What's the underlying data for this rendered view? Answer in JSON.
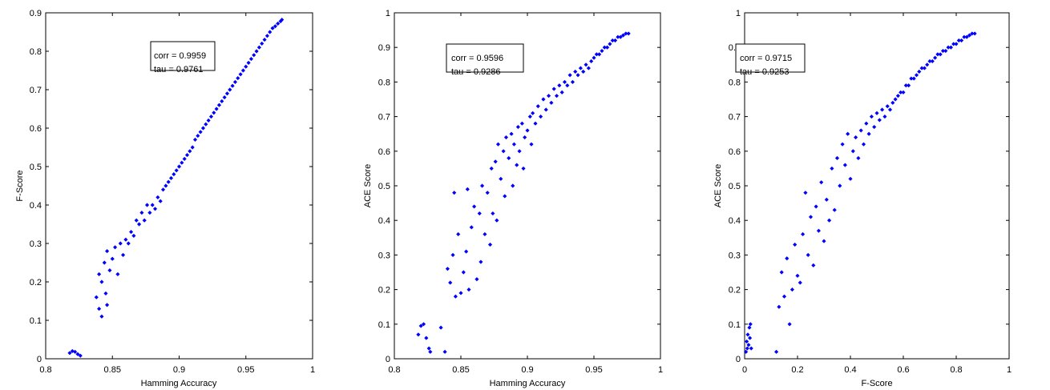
{
  "chart_data": [
    {
      "type": "scatter",
      "xlabel": "Hamming Accuracy",
      "ylabel": "F-Score",
      "xlim": [
        0.8,
        1
      ],
      "ylim": [
        0,
        0.9
      ],
      "xticks": [
        "0.8",
        "0.85",
        "0.9",
        "0.95",
        "1"
      ],
      "yticks": [
        "0",
        "0.1",
        "0.2",
        "0.3",
        "0.4",
        "0.5",
        "0.6",
        "0.7",
        "0.8",
        "0.9"
      ],
      "annotation": {
        "corr": "corr = 0.9959",
        "tau": "tau = 0.9761"
      },
      "marker_color": "#0000ff",
      "series": [
        {
          "points": [
            [
              0.818,
              0.015
            ],
            [
              0.82,
              0.02
            ],
            [
              0.822,
              0.018
            ],
            [
              0.824,
              0.012
            ],
            [
              0.826,
              0.008
            ],
            [
              0.838,
              0.16
            ],
            [
              0.84,
              0.13
            ],
            [
              0.84,
              0.22
            ],
            [
              0.842,
              0.11
            ],
            [
              0.842,
              0.2
            ],
            [
              0.844,
              0.25
            ],
            [
              0.845,
              0.17
            ],
            [
              0.846,
              0.14
            ],
            [
              0.846,
              0.28
            ],
            [
              0.848,
              0.23
            ],
            [
              0.85,
              0.26
            ],
            [
              0.852,
              0.29
            ],
            [
              0.854,
              0.22
            ],
            [
              0.856,
              0.3
            ],
            [
              0.858,
              0.27
            ],
            [
              0.86,
              0.31
            ],
            [
              0.862,
              0.3
            ],
            [
              0.864,
              0.33
            ],
            [
              0.866,
              0.32
            ],
            [
              0.868,
              0.36
            ],
            [
              0.87,
              0.35
            ],
            [
              0.872,
              0.38
            ],
            [
              0.874,
              0.36
            ],
            [
              0.876,
              0.4
            ],
            [
              0.878,
              0.38
            ],
            [
              0.88,
              0.4
            ],
            [
              0.882,
              0.39
            ],
            [
              0.884,
              0.42
            ],
            [
              0.886,
              0.41
            ],
            [
              0.888,
              0.44
            ],
            [
              0.89,
              0.45
            ],
            [
              0.892,
              0.46
            ],
            [
              0.894,
              0.47
            ],
            [
              0.896,
              0.48
            ],
            [
              0.898,
              0.49
            ],
            [
              0.9,
              0.5
            ],
            [
              0.902,
              0.51
            ],
            [
              0.904,
              0.52
            ],
            [
              0.906,
              0.53
            ],
            [
              0.908,
              0.54
            ],
            [
              0.91,
              0.55
            ],
            [
              0.912,
              0.57
            ],
            [
              0.914,
              0.58
            ],
            [
              0.916,
              0.59
            ],
            [
              0.918,
              0.6
            ],
            [
              0.92,
              0.61
            ],
            [
              0.922,
              0.62
            ],
            [
              0.924,
              0.63
            ],
            [
              0.926,
              0.64
            ],
            [
              0.928,
              0.65
            ],
            [
              0.93,
              0.66
            ],
            [
              0.932,
              0.67
            ],
            [
              0.934,
              0.68
            ],
            [
              0.936,
              0.69
            ],
            [
              0.938,
              0.7
            ],
            [
              0.94,
              0.71
            ],
            [
              0.942,
              0.72
            ],
            [
              0.944,
              0.73
            ],
            [
              0.946,
              0.74
            ],
            [
              0.948,
              0.75
            ],
            [
              0.95,
              0.76
            ],
            [
              0.952,
              0.77
            ],
            [
              0.954,
              0.78
            ],
            [
              0.956,
              0.79
            ],
            [
              0.958,
              0.8
            ],
            [
              0.96,
              0.81
            ],
            [
              0.962,
              0.82
            ],
            [
              0.964,
              0.83
            ],
            [
              0.966,
              0.84
            ],
            [
              0.968,
              0.85
            ],
            [
              0.97,
              0.86
            ],
            [
              0.972,
              0.865
            ],
            [
              0.974,
              0.872
            ],
            [
              0.976,
              0.878
            ],
            [
              0.977,
              0.882
            ]
          ]
        }
      ]
    },
    {
      "type": "scatter",
      "xlabel": "Hamming Accuracy",
      "ylabel": "ACE Score",
      "xlim": [
        0.8,
        1
      ],
      "ylim": [
        0,
        1
      ],
      "xticks": [
        "0.8",
        "0.85",
        "0.9",
        "0.95",
        "1"
      ],
      "yticks": [
        "0",
        "0.1",
        "0.2",
        "0.3",
        "0.4",
        "0.5",
        "0.6",
        "0.7",
        "0.8",
        "0.9",
        "1"
      ],
      "annotation": {
        "corr": "corr = 0.9596",
        "tau": "tau = 0.9286"
      },
      "marker_color": "#0000ff",
      "series": [
        {
          "points": [
            [
              0.818,
              0.07
            ],
            [
              0.82,
              0.095
            ],
            [
              0.822,
              0.1
            ],
            [
              0.824,
              0.06
            ],
            [
              0.826,
              0.03
            ],
            [
              0.827,
              0.02
            ],
            [
              0.835,
              0.09
            ],
            [
              0.838,
              0.02
            ],
            [
              0.84,
              0.26
            ],
            [
              0.842,
              0.22
            ],
            [
              0.844,
              0.3
            ],
            [
              0.845,
              0.48
            ],
            [
              0.846,
              0.18
            ],
            [
              0.848,
              0.36
            ],
            [
              0.85,
              0.19
            ],
            [
              0.852,
              0.25
            ],
            [
              0.854,
              0.31
            ],
            [
              0.855,
              0.49
            ],
            [
              0.856,
              0.2
            ],
            [
              0.858,
              0.38
            ],
            [
              0.86,
              0.44
            ],
            [
              0.862,
              0.23
            ],
            [
              0.864,
              0.42
            ],
            [
              0.865,
              0.28
            ],
            [
              0.866,
              0.5
            ],
            [
              0.868,
              0.36
            ],
            [
              0.87,
              0.48
            ],
            [
              0.872,
              0.33
            ],
            [
              0.873,
              0.55
            ],
            [
              0.874,
              0.42
            ],
            [
              0.876,
              0.57
            ],
            [
              0.877,
              0.4
            ],
            [
              0.878,
              0.62
            ],
            [
              0.88,
              0.52
            ],
            [
              0.882,
              0.6
            ],
            [
              0.883,
              0.47
            ],
            [
              0.884,
              0.64
            ],
            [
              0.886,
              0.58
            ],
            [
              0.888,
              0.65
            ],
            [
              0.889,
              0.5
            ],
            [
              0.89,
              0.62
            ],
            [
              0.892,
              0.56
            ],
            [
              0.893,
              0.67
            ],
            [
              0.894,
              0.6
            ],
            [
              0.896,
              0.68
            ],
            [
              0.897,
              0.55
            ],
            [
              0.898,
              0.64
            ],
            [
              0.9,
              0.66
            ],
            [
              0.902,
              0.7
            ],
            [
              0.903,
              0.62
            ],
            [
              0.904,
              0.71
            ],
            [
              0.906,
              0.68
            ],
            [
              0.908,
              0.73
            ],
            [
              0.91,
              0.7
            ],
            [
              0.912,
              0.75
            ],
            [
              0.914,
              0.72
            ],
            [
              0.916,
              0.76
            ],
            [
              0.918,
              0.74
            ],
            [
              0.92,
              0.78
            ],
            [
              0.922,
              0.76
            ],
            [
              0.924,
              0.79
            ],
            [
              0.926,
              0.77
            ],
            [
              0.928,
              0.8
            ],
            [
              0.93,
              0.79
            ],
            [
              0.932,
              0.82
            ],
            [
              0.934,
              0.8
            ],
            [
              0.936,
              0.83
            ],
            [
              0.938,
              0.82
            ],
            [
              0.94,
              0.84
            ],
            [
              0.942,
              0.83
            ],
            [
              0.944,
              0.85
            ],
            [
              0.946,
              0.84
            ],
            [
              0.948,
              0.86
            ],
            [
              0.95,
              0.87
            ],
            [
              0.952,
              0.88
            ],
            [
              0.954,
              0.88
            ],
            [
              0.956,
              0.89
            ],
            [
              0.958,
              0.9
            ],
            [
              0.96,
              0.9
            ],
            [
              0.962,
              0.91
            ],
            [
              0.964,
              0.92
            ],
            [
              0.966,
              0.92
            ],
            [
              0.968,
              0.93
            ],
            [
              0.97,
              0.93
            ],
            [
              0.972,
              0.935
            ],
            [
              0.974,
              0.94
            ],
            [
              0.976,
              0.94
            ]
          ]
        }
      ]
    },
    {
      "type": "scatter",
      "xlabel": "F-Score",
      "ylabel": "ACE Score",
      "xlim": [
        0,
        1
      ],
      "ylim": [
        0,
        1
      ],
      "xticks": [
        "0",
        "0.2",
        "0.4",
        "0.6",
        "0.8",
        "1"
      ],
      "yticks": [
        "0",
        "0.1",
        "0.2",
        "0.3",
        "0.4",
        "0.5",
        "0.6",
        "0.7",
        "0.8",
        "0.9",
        "1"
      ],
      "annotation": {
        "corr": "corr = 0.9715",
        "tau": "tau = 0.9253"
      },
      "marker_color": "#0000ff",
      "series": [
        {
          "points": [
            [
              0.005,
              0.02
            ],
            [
              0.008,
              0.05
            ],
            [
              0.01,
              0.03
            ],
            [
              0.012,
              0.07
            ],
            [
              0.015,
              0.04
            ],
            [
              0.018,
              0.09
            ],
            [
              0.02,
              0.06
            ],
            [
              0.022,
              0.1
            ],
            [
              0.025,
              0.03
            ],
            [
              0.12,
              0.02
            ],
            [
              0.13,
              0.15
            ],
            [
              0.14,
              0.25
            ],
            [
              0.15,
              0.18
            ],
            [
              0.16,
              0.29
            ],
            [
              0.17,
              0.1
            ],
            [
              0.18,
              0.2
            ],
            [
              0.19,
              0.33
            ],
            [
              0.2,
              0.24
            ],
            [
              0.21,
              0.22
            ],
            [
              0.22,
              0.36
            ],
            [
              0.23,
              0.48
            ],
            [
              0.24,
              0.3
            ],
            [
              0.25,
              0.41
            ],
            [
              0.26,
              0.27
            ],
            [
              0.27,
              0.44
            ],
            [
              0.28,
              0.37
            ],
            [
              0.29,
              0.51
            ],
            [
              0.3,
              0.34
            ],
            [
              0.31,
              0.46
            ],
            [
              0.32,
              0.4
            ],
            [
              0.33,
              0.55
            ],
            [
              0.34,
              0.43
            ],
            [
              0.35,
              0.58
            ],
            [
              0.36,
              0.5
            ],
            [
              0.37,
              0.62
            ],
            [
              0.38,
              0.56
            ],
            [
              0.39,
              0.65
            ],
            [
              0.4,
              0.52
            ],
            [
              0.41,
              0.6
            ],
            [
              0.42,
              0.64
            ],
            [
              0.43,
              0.58
            ],
            [
              0.44,
              0.66
            ],
            [
              0.45,
              0.62
            ],
            [
              0.46,
              0.68
            ],
            [
              0.47,
              0.65
            ],
            [
              0.48,
              0.7
            ],
            [
              0.49,
              0.67
            ],
            [
              0.5,
              0.71
            ],
            [
              0.51,
              0.69
            ],
            [
              0.52,
              0.72
            ],
            [
              0.53,
              0.7
            ],
            [
              0.54,
              0.73
            ],
            [
              0.55,
              0.72
            ],
            [
              0.56,
              0.74
            ],
            [
              0.57,
              0.75
            ],
            [
              0.58,
              0.76
            ],
            [
              0.59,
              0.77
            ],
            [
              0.6,
              0.77
            ],
            [
              0.61,
              0.79
            ],
            [
              0.62,
              0.79
            ],
            [
              0.63,
              0.81
            ],
            [
              0.64,
              0.81
            ],
            [
              0.65,
              0.82
            ],
            [
              0.66,
              0.83
            ],
            [
              0.67,
              0.84
            ],
            [
              0.68,
              0.84
            ],
            [
              0.69,
              0.85
            ],
            [
              0.7,
              0.86
            ],
            [
              0.71,
              0.86
            ],
            [
              0.72,
              0.87
            ],
            [
              0.73,
              0.88
            ],
            [
              0.74,
              0.88
            ],
            [
              0.75,
              0.89
            ],
            [
              0.76,
              0.89
            ],
            [
              0.77,
              0.9
            ],
            [
              0.78,
              0.9
            ],
            [
              0.79,
              0.91
            ],
            [
              0.8,
              0.91
            ],
            [
              0.81,
              0.92
            ],
            [
              0.82,
              0.92
            ],
            [
              0.83,
              0.93
            ],
            [
              0.84,
              0.93
            ],
            [
              0.85,
              0.935
            ],
            [
              0.86,
              0.94
            ],
            [
              0.87,
              0.94
            ]
          ]
        }
      ]
    }
  ]
}
